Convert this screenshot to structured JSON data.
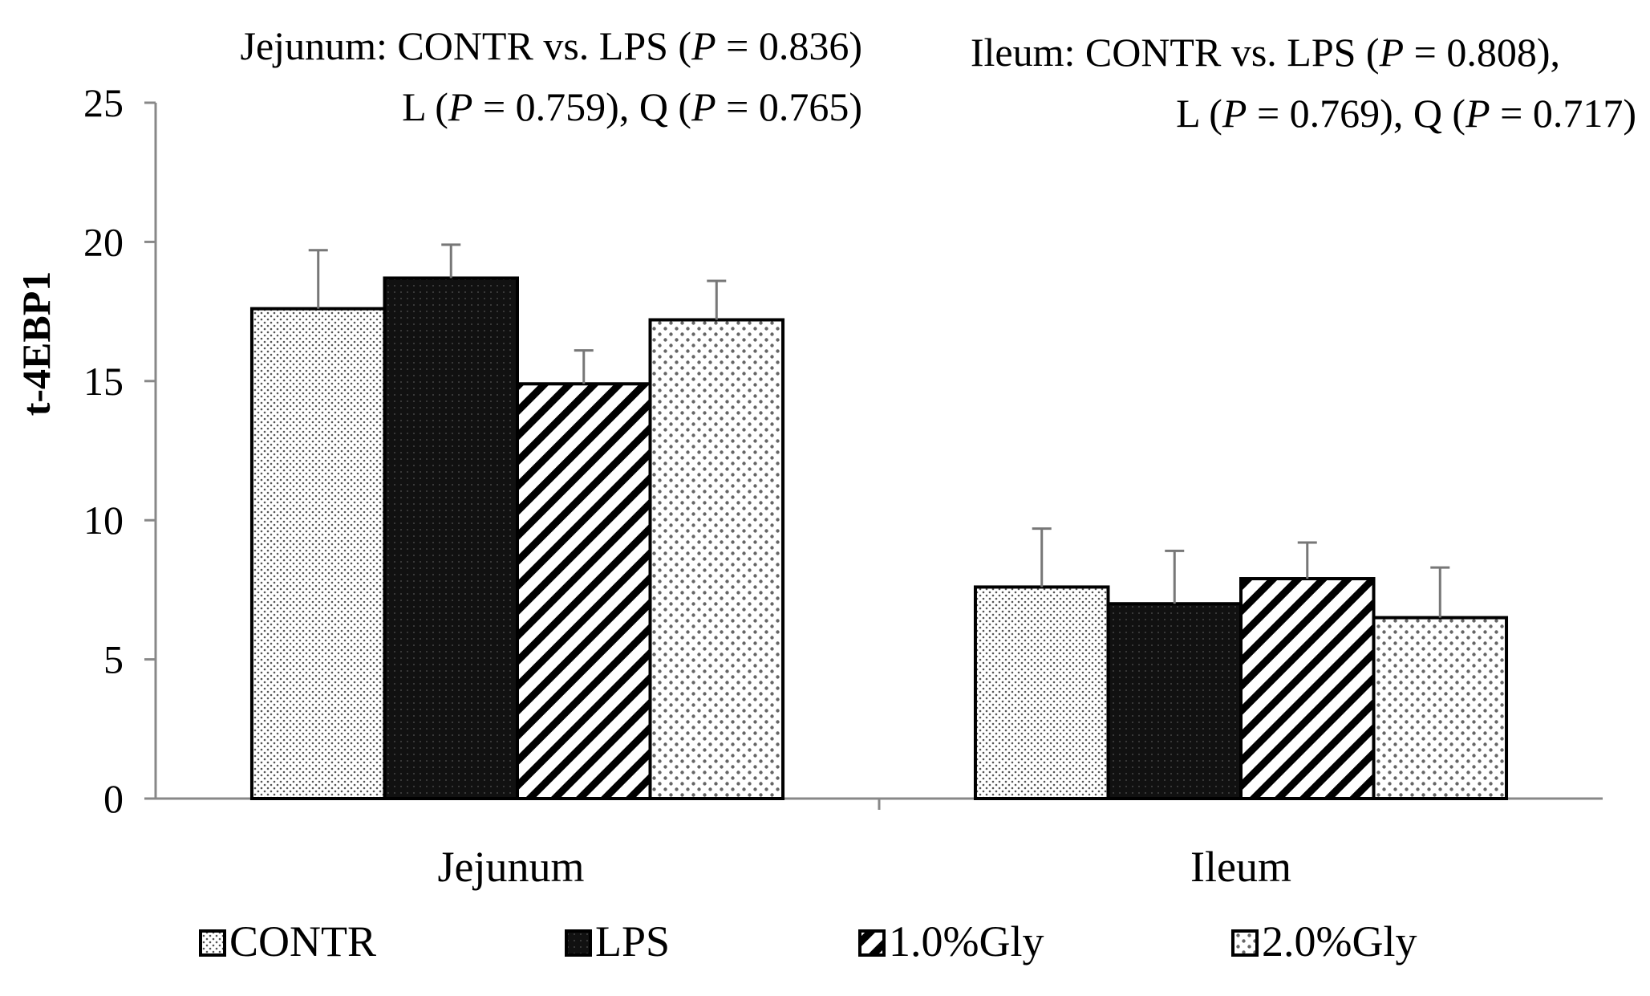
{
  "chart_data": {
    "type": "bar",
    "categories": [
      "Jejunum",
      "Ileum"
    ],
    "series": [
      {
        "name": "CONTR",
        "values": [
          17.6,
          7.6
        ],
        "errors": [
          2.1,
          2.1
        ],
        "pattern": "fine-dots"
      },
      {
        "name": "LPS",
        "values": [
          18.7,
          7.0
        ],
        "errors": [
          1.2,
          1.9
        ],
        "pattern": "solid-black"
      },
      {
        "name": "1.0%Gly",
        "values": [
          14.9,
          7.9
        ],
        "errors": [
          1.2,
          1.3
        ],
        "pattern": "diagonal-stripes"
      },
      {
        "name": "2.0%Gly",
        "values": [
          17.2,
          6.5
        ],
        "errors": [
          1.4,
          1.8
        ],
        "pattern": "coarse-dots"
      }
    ],
    "ylabel": "t-4EBP1",
    "xlabel": "",
    "ylim": [
      0,
      25
    ],
    "yticks": [
      "0",
      "5",
      "10",
      "15",
      "20",
      "25"
    ],
    "legend_position": "bottom",
    "grid": false,
    "annotations": {
      "jejunum": {
        "line1": {
          "prefix": "Jejunum: CONTR vs. LPS (",
          "p": "P",
          "value": " = 0.836)"
        },
        "line2": [
          {
            "prefix": "L (",
            "p": "P",
            "value": " = 0.759), "
          },
          {
            "prefix": "Q (",
            "p": "P",
            "value": " = 0.765)"
          }
        ]
      },
      "ileum": {
        "line1": {
          "prefix": "Ileum: CONTR vs. LPS (",
          "p": "P",
          "value": " = 0.808),"
        },
        "line2": [
          {
            "prefix": "L (",
            "p": "P",
            "value": " = 0.769), "
          },
          {
            "prefix": "Q (",
            "p": "P",
            "value": " = 0.717)"
          }
        ]
      }
    }
  }
}
